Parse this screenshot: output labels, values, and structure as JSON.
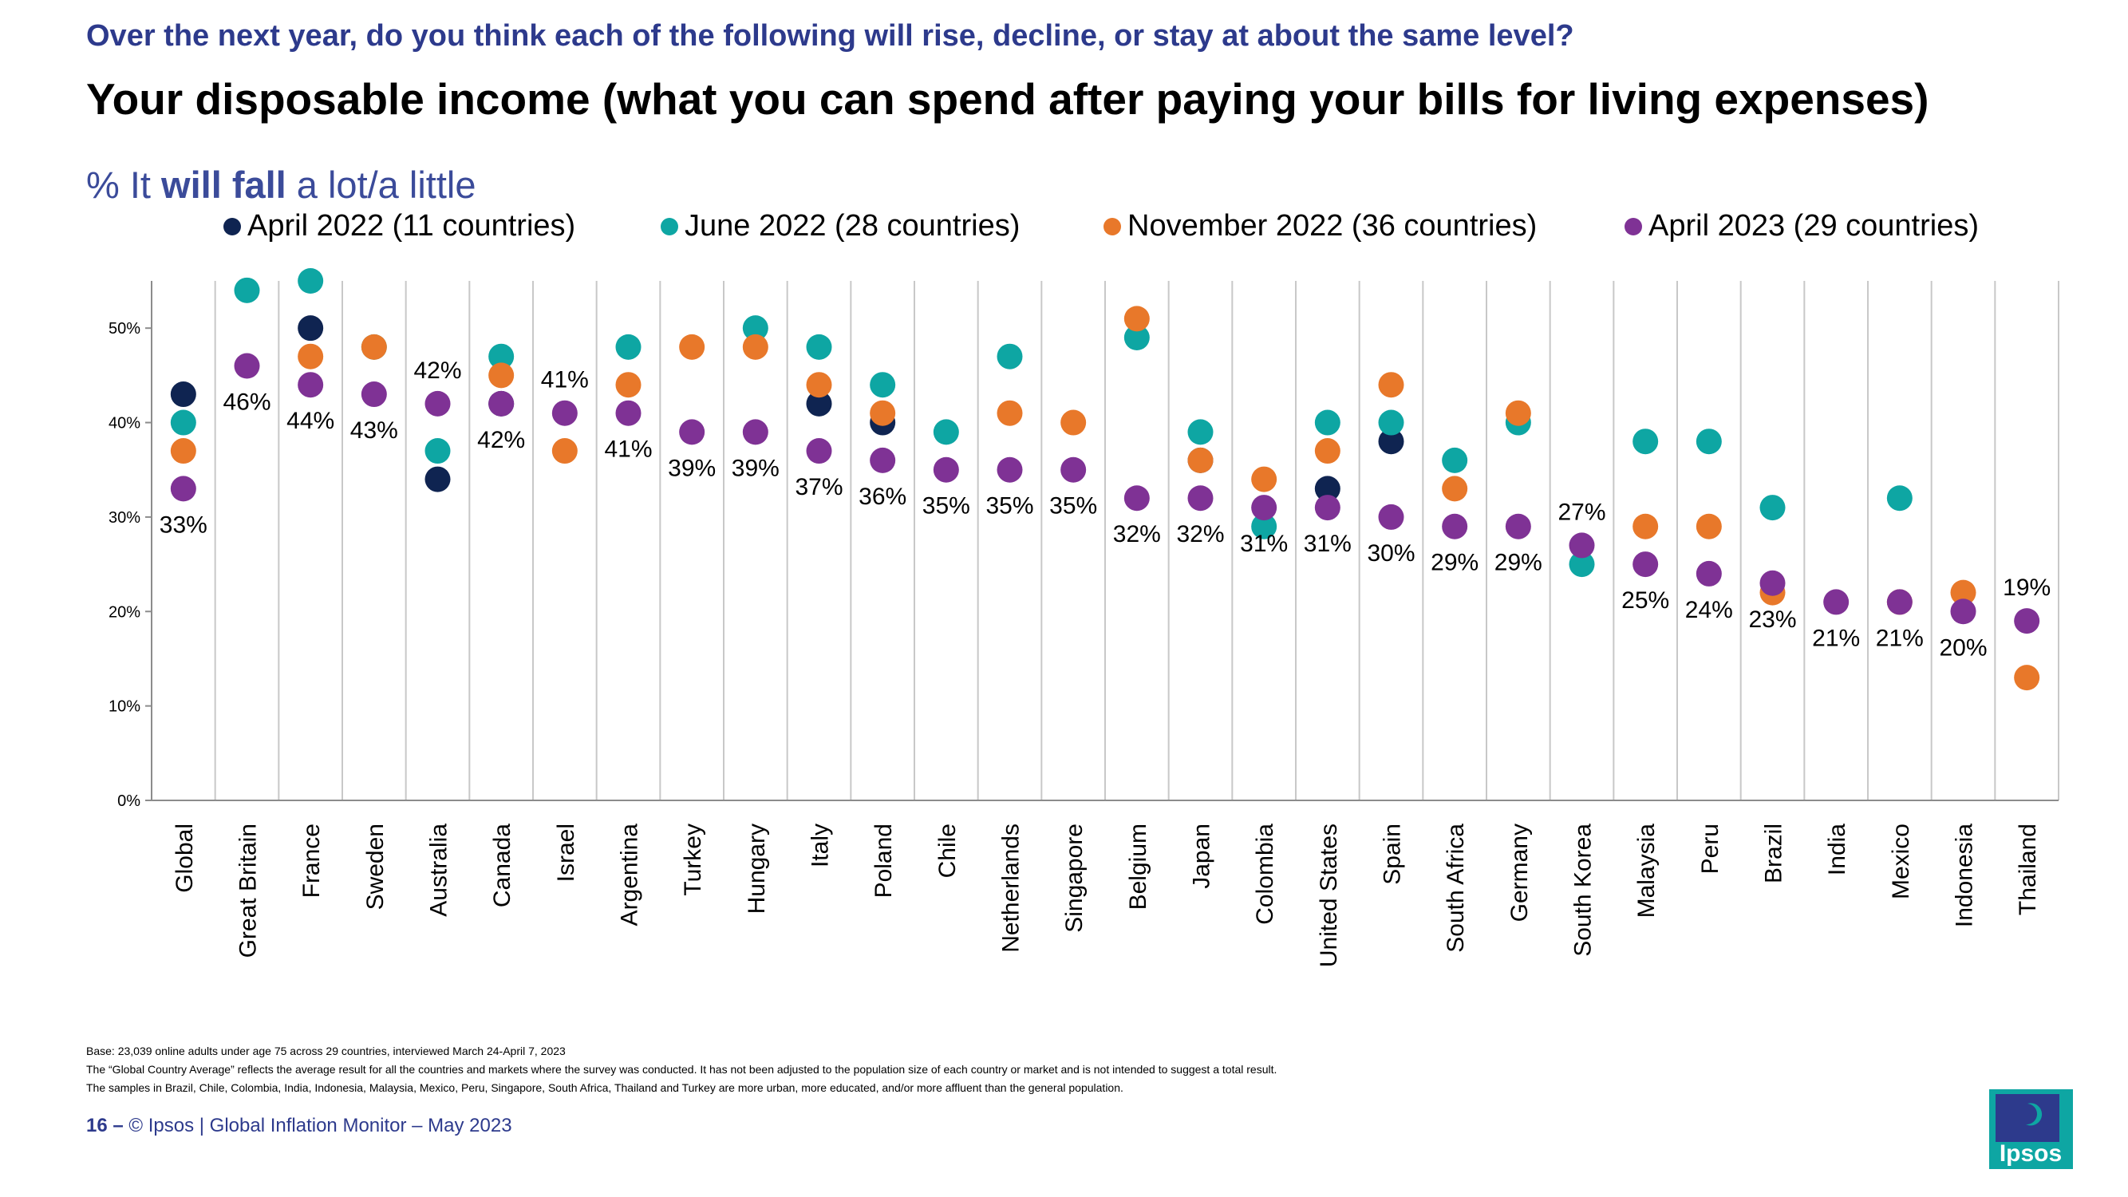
{
  "question": "Over the next year, do you think each of the following will rise, decline, or stay at about the same level?",
  "title": "Your disposable income (what you can spend after paying your bills for living expenses)",
  "subtitle": {
    "prefix": "% It ",
    "bold": "will fall",
    "suffix": " a lot/a little"
  },
  "colors": {
    "april_2022": "#0f2451",
    "june_2022": "#0ea6a3",
    "november_2022": "#e8782a",
    "april_2023": "#7f3295",
    "question": "#2d3a8c",
    "subtitle": "#3b4b9a",
    "grid": "#c8c8c8"
  },
  "chart_data": {
    "type": "scatter",
    "title": "Your disposable income (what you can spend after paying your bills for living expenses)",
    "ylim": [
      0,
      55
    ],
    "yticks": [
      "0%",
      "10%",
      "20%",
      "30%",
      "40%",
      "50%"
    ],
    "grid": "vertical separators between categories",
    "legend_position": "top",
    "categories": [
      "Global",
      "Great Britain",
      "France",
      "Sweden",
      "Australia",
      "Canada",
      "Israel",
      "Argentina",
      "Turkey",
      "Hungary",
      "Italy",
      "Poland",
      "Chile",
      "Netherlands",
      "Singapore",
      "Belgium",
      "Japan",
      "Colombia",
      "United States",
      "Spain",
      "South Africa",
      "Germany",
      "South Korea",
      "Malaysia",
      "Peru",
      "Brazil",
      "India",
      "Mexico",
      "Indonesia",
      "Thailand"
    ],
    "series": [
      {
        "name": "April 2022 (11 countries)",
        "key": "april_2022",
        "values": [
          43,
          null,
          50,
          null,
          34,
          42,
          null,
          null,
          null,
          null,
          42,
          40,
          null,
          null,
          null,
          null,
          36,
          null,
          33,
          38,
          null,
          null,
          null,
          null,
          null,
          null,
          null,
          null,
          null,
          null
        ]
      },
      {
        "name": "June 2022 (28 countries)",
        "key": "june_2022",
        "values": [
          40,
          54,
          55,
          48,
          37,
          47,
          null,
          48,
          null,
          50,
          48,
          44,
          39,
          47,
          null,
          49,
          39,
          29,
          40,
          40,
          36,
          40,
          25,
          38,
          38,
          31,
          null,
          32,
          null,
          null
        ]
      },
      {
        "name": "November 2022 (36 countries)",
        "key": "november_2022",
        "values": [
          37,
          null,
          47,
          48,
          null,
          45,
          37,
          44,
          48,
          48,
          44,
          41,
          null,
          41,
          40,
          51,
          36,
          34,
          37,
          44,
          33,
          41,
          null,
          29,
          29,
          22,
          null,
          21,
          22,
          13
        ]
      },
      {
        "name": "April 2023 (29 countries)",
        "key": "april_2023",
        "values": [
          33,
          46,
          44,
          43,
          42,
          42,
          41,
          41,
          39,
          39,
          37,
          36,
          35,
          35,
          35,
          32,
          32,
          31,
          31,
          30,
          29,
          29,
          27,
          25,
          24,
          23,
          21,
          21,
          20,
          19
        ]
      }
    ],
    "data_labels": [
      "33%",
      "46%",
      "44%",
      "43%",
      "42%",
      "42%",
      "41%",
      "41%",
      "39%",
      "39%",
      "37%",
      "36%",
      "35%",
      "35%",
      "35%",
      "32%",
      "32%",
      "31%",
      "31%",
      "30%",
      "29%",
      "29%",
      "27%",
      "25%",
      "24%",
      "23%",
      "21%",
      "21%",
      "20%",
      "19%"
    ],
    "label_above": [
      4,
      6,
      22,
      29
    ]
  },
  "footnotes": [
    "Base: 23,039 online adults under age 75 across 29 countries, interviewed March 24-April 7, 2023",
    "The “Global Country Average” reflects the average result for all the countries and markets where the survey was conducted. It has not been adjusted to the population size of each country or market and is not intended to suggest a total result.",
    "The samples in Brazil, Chile, Colombia, India, Indonesia, Malaysia, Mexico, Peru, Singapore, South Africa, Thailand and Turkey are more urban, more educated, and/or more affluent than the general population."
  ],
  "footer": {
    "page_number": "16 –",
    "text": "© Ipsos | Global Inflation Monitor – May 2023"
  },
  "logo": {
    "text": "Ipsos",
    "background": "#0ea6a3",
    "panel": "#2d3a8c"
  }
}
